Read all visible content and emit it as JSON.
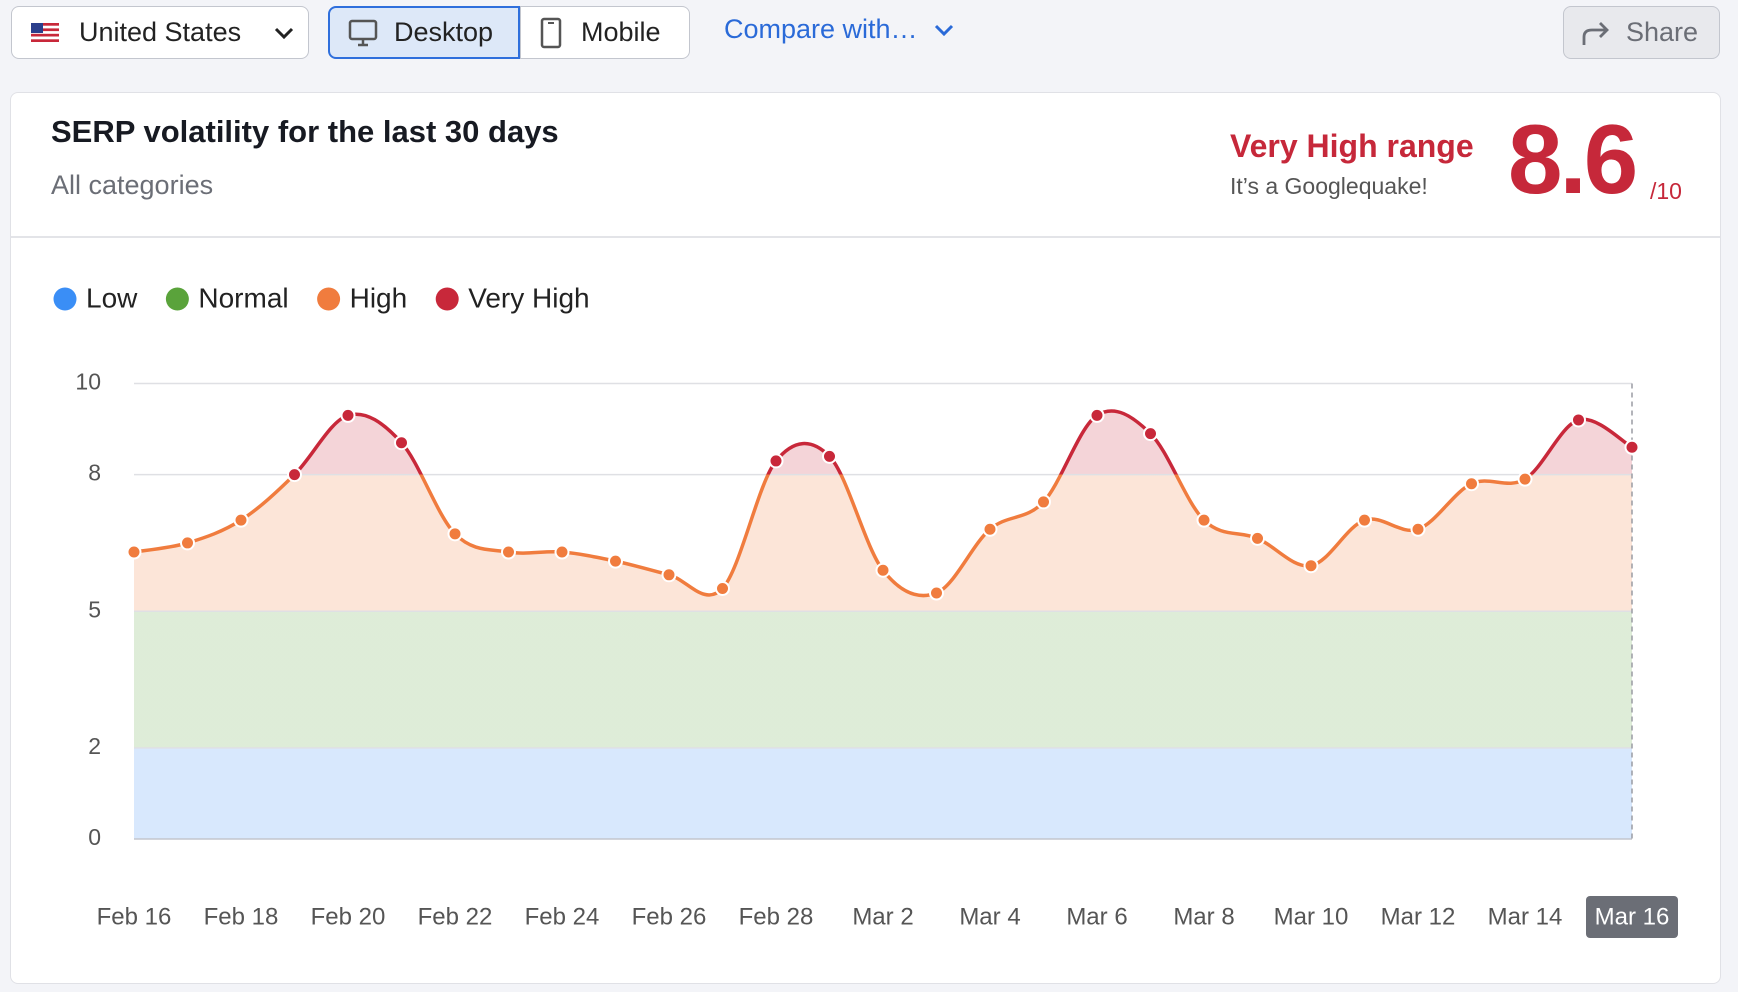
{
  "toolbar": {
    "country": "United States",
    "devices": [
      "Desktop",
      "Mobile"
    ],
    "active_device": "Desktop",
    "compare": "Compare with…",
    "share": "Share"
  },
  "header": {
    "title": "SERP volatility for the last 30 days",
    "subtitle": "All categories",
    "range_label": "Very High range",
    "range_note": "It’s a Googlequake!",
    "score": 8.6,
    "score_max": "/10"
  },
  "chart_data": {
    "type": "line",
    "categories": [
      "Feb 16",
      null,
      "Feb 18",
      null,
      "Feb 20",
      null,
      "Feb 22",
      null,
      "Feb 24",
      null,
      "Feb 26",
      null,
      "Feb 28",
      null,
      "Mar 2",
      null,
      "Mar 4",
      null,
      "Mar 6",
      null,
      "Mar 8",
      null,
      "Mar 10",
      null,
      "Mar 12",
      null,
      "Mar 14",
      null,
      "Mar 16"
    ],
    "values": [
      6.3,
      6.5,
      7.0,
      8.0,
      9.3,
      8.7,
      6.7,
      6.3,
      6.3,
      6.1,
      5.8,
      5.5,
      8.3,
      8.4,
      5.9,
      5.4,
      6.8,
      7.4,
      9.3,
      8.9,
      7.0,
      6.6,
      6.0,
      7.0,
      6.8,
      7.8,
      7.9,
      9.2,
      8.6
    ],
    "levels": [
      {
        "name": "Low",
        "color": "#3a8ef6",
        "min": 0
      },
      {
        "name": "Normal",
        "color": "#5aa33b",
        "min": 2
      },
      {
        "name": "High",
        "color": "#f07c3e",
        "min": 5
      },
      {
        "name": "Very High",
        "color": "#c8283a",
        "min": 8
      }
    ],
    "ylim": [
      0,
      10
    ],
    "yticks": [
      0,
      2,
      5,
      8,
      10
    ],
    "grid": true
  }
}
